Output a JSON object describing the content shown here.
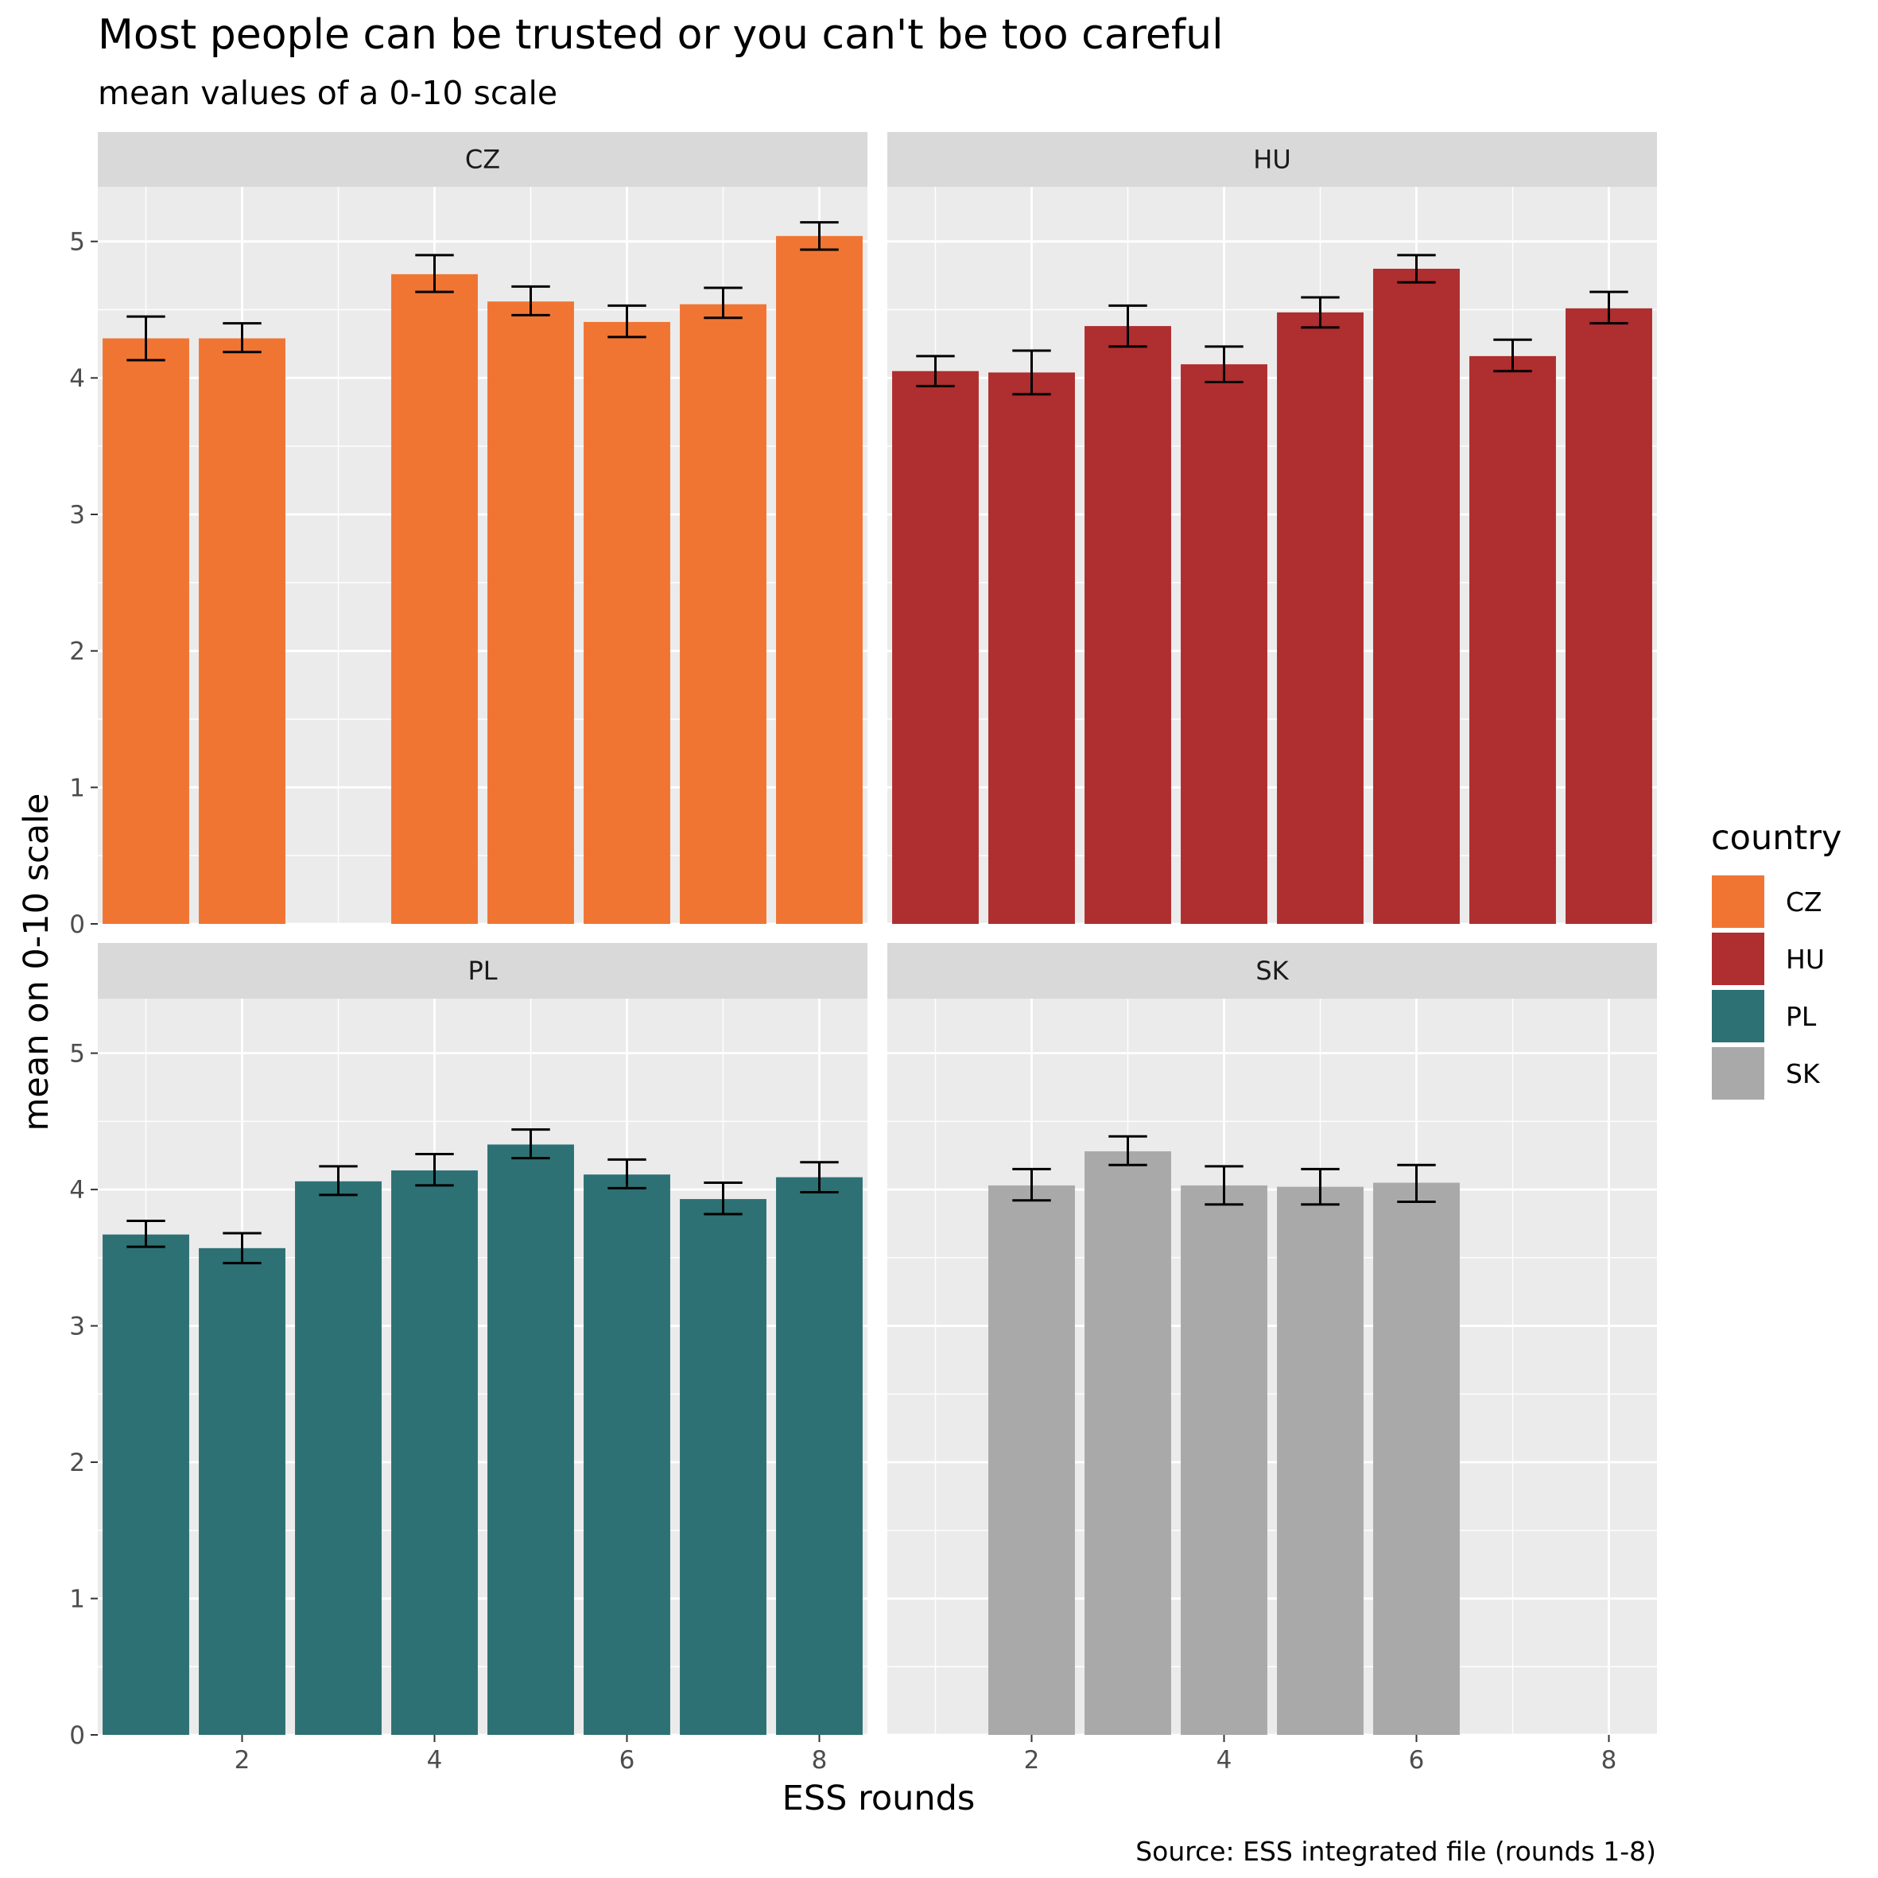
{
  "chart_data": {
    "type": "bar",
    "title": "Most people can be trusted or you can't be too careful",
    "subtitle": "mean values of a 0-10 scale",
    "xlabel": "ESS rounds",
    "ylabel": "mean on 0-10 scale",
    "caption": "Source: ESS integrated file (rounds 1-8)",
    "xlim": [
      0.5,
      8.5
    ],
    "ylim": [
      0,
      5.4
    ],
    "x_ticks": [
      2,
      4,
      6,
      8
    ],
    "y_ticks": [
      0,
      1,
      2,
      3,
      4,
      5
    ],
    "grid": true,
    "facet_by": "country",
    "legend": {
      "title": "country",
      "position": "right",
      "entries": [
        {
          "label": "CZ",
          "color": "#F07533"
        },
        {
          "label": "HU",
          "color": "#AF2E2F"
        },
        {
          "label": "PL",
          "color": "#2D7174"
        },
        {
          "label": "SK",
          "color": "#A9A9A9"
        }
      ]
    },
    "series": [
      {
        "name": "CZ",
        "color": "#F07533",
        "points": [
          {
            "x": 1,
            "y": 4.29,
            "lo": 4.13,
            "hi": 4.45
          },
          {
            "x": 2,
            "y": 4.29,
            "lo": 4.19,
            "hi": 4.4
          },
          {
            "x": 4,
            "y": 4.76,
            "lo": 4.63,
            "hi": 4.9
          },
          {
            "x": 5,
            "y": 4.56,
            "lo": 4.46,
            "hi": 4.67
          },
          {
            "x": 6,
            "y": 4.41,
            "lo": 4.3,
            "hi": 4.53
          },
          {
            "x": 7,
            "y": 4.54,
            "lo": 4.44,
            "hi": 4.66
          },
          {
            "x": 8,
            "y": 5.04,
            "lo": 4.94,
            "hi": 5.14
          }
        ]
      },
      {
        "name": "HU",
        "color": "#AF2E2F",
        "points": [
          {
            "x": 1,
            "y": 4.05,
            "lo": 3.94,
            "hi": 4.16
          },
          {
            "x": 2,
            "y": 4.04,
            "lo": 3.88,
            "hi": 4.2
          },
          {
            "x": 3,
            "y": 4.38,
            "lo": 4.23,
            "hi": 4.53
          },
          {
            "x": 4,
            "y": 4.1,
            "lo": 3.97,
            "hi": 4.23
          },
          {
            "x": 5,
            "y": 4.48,
            "lo": 4.37,
            "hi": 4.59
          },
          {
            "x": 6,
            "y": 4.8,
            "lo": 4.7,
            "hi": 4.9
          },
          {
            "x": 7,
            "y": 4.16,
            "lo": 4.05,
            "hi": 4.28
          },
          {
            "x": 8,
            "y": 4.51,
            "lo": 4.4,
            "hi": 4.63
          }
        ]
      },
      {
        "name": "PL",
        "color": "#2D7174",
        "points": [
          {
            "x": 1,
            "y": 3.67,
            "lo": 3.58,
            "hi": 3.77
          },
          {
            "x": 2,
            "y": 3.57,
            "lo": 3.46,
            "hi": 3.68
          },
          {
            "x": 3,
            "y": 4.06,
            "lo": 3.96,
            "hi": 4.17
          },
          {
            "x": 4,
            "y": 4.14,
            "lo": 4.03,
            "hi": 4.26
          },
          {
            "x": 5,
            "y": 4.33,
            "lo": 4.23,
            "hi": 4.44
          },
          {
            "x": 6,
            "y": 4.11,
            "lo": 4.01,
            "hi": 4.22
          },
          {
            "x": 7,
            "y": 3.93,
            "lo": 3.82,
            "hi": 4.05
          },
          {
            "x": 8,
            "y": 4.09,
            "lo": 3.98,
            "hi": 4.2
          }
        ]
      },
      {
        "name": "SK",
        "color": "#A9A9A9",
        "points": [
          {
            "x": 2,
            "y": 4.03,
            "lo": 3.92,
            "hi": 4.15
          },
          {
            "x": 3,
            "y": 4.28,
            "lo": 4.18,
            "hi": 4.39
          },
          {
            "x": 4,
            "y": 4.03,
            "lo": 3.89,
            "hi": 4.17
          },
          {
            "x": 5,
            "y": 4.02,
            "lo": 3.89,
            "hi": 4.15
          },
          {
            "x": 6,
            "y": 4.05,
            "lo": 3.91,
            "hi": 4.18
          }
        ]
      }
    ]
  }
}
